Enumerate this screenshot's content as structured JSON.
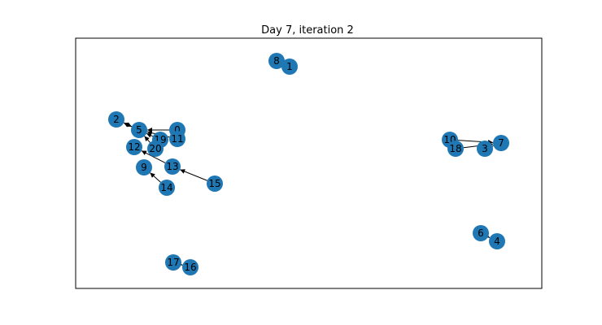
{
  "title": "Day 7, iteration 2",
  "colors": {
    "node": "#1f77b4",
    "edge": "#000000",
    "frame": "#000000"
  },
  "nodes": [
    "0",
    "1",
    "2",
    "3",
    "4",
    "5",
    "6",
    "7",
    "8",
    "9",
    "10",
    "11",
    "12",
    "13",
    "14",
    "15",
    "16",
    "17",
    "18",
    "19",
    "20"
  ],
  "edges": [
    {
      "from": "0",
      "to": "5"
    },
    {
      "from": "11",
      "to": "5"
    },
    {
      "from": "19",
      "to": "5"
    },
    {
      "from": "20",
      "to": "5"
    },
    {
      "from": "5",
      "to": "2"
    },
    {
      "from": "2",
      "to": "5"
    },
    {
      "from": "13",
      "to": "12"
    },
    {
      "from": "14",
      "to": "9"
    },
    {
      "from": "15",
      "to": "13"
    },
    {
      "from": "10",
      "to": "7"
    },
    {
      "from": "18",
      "to": "7"
    },
    {
      "from": "3",
      "to": "7"
    },
    {
      "from": "8",
      "to": "1"
    },
    {
      "from": "6",
      "to": "4"
    },
    {
      "from": "17",
      "to": "16"
    }
  ]
}
